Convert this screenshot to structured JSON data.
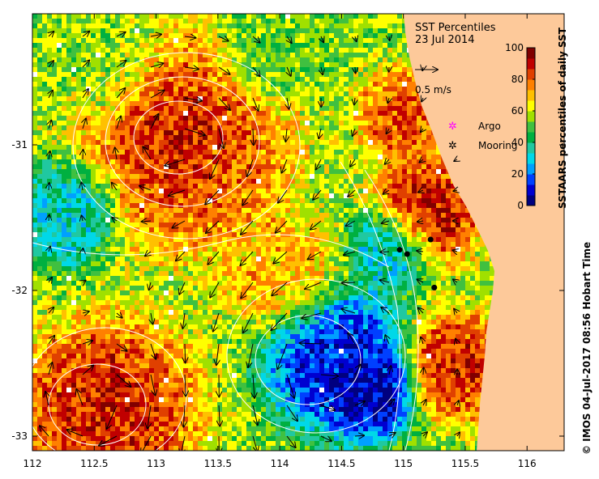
{
  "title": "SST Percentiles",
  "date": "23 Jul 2014",
  "scale": {
    "label": "0.5 m/s"
  },
  "legend": {
    "argo_label": "Argo",
    "mooring_label": "Mooring"
  },
  "colorbar": {
    "label": "SSTAARS percentiles of daily SST",
    "ticks": [
      "100",
      "80",
      "60",
      "40",
      "20",
      "0"
    ],
    "range": [
      0,
      100
    ],
    "colors": [
      "#00007f",
      "#0000d0",
      "#0040ff",
      "#00a0ff",
      "#00d8e8",
      "#20c8a0",
      "#00b040",
      "#40c040",
      "#a0e000",
      "#ffff00",
      "#ffc000",
      "#ff8000",
      "#e04000",
      "#c00000",
      "#800000"
    ]
  },
  "axes": {
    "x_range": [
      112,
      116.3
    ],
    "y_range": [
      -33.1,
      -30.1
    ],
    "x_ticks": [
      "112",
      "112.5",
      "113",
      "113.5",
      "114",
      "114.5",
      "115",
      "115.5",
      "116"
    ],
    "y_ticks": [
      "-31",
      "-32",
      "-33"
    ]
  },
  "moorings": [
    {
      "lon": 114.97,
      "lat": -31.72
    },
    {
      "lon": 115.03,
      "lat": -31.75
    },
    {
      "lon": 115.22,
      "lat": -31.65
    },
    {
      "lon": 115.25,
      "lat": -31.98
    }
  ],
  "land": {
    "color": "#fdc99a"
  },
  "credit": "© IMOS 04-Jul-2017 08:56 Hobart Time"
}
